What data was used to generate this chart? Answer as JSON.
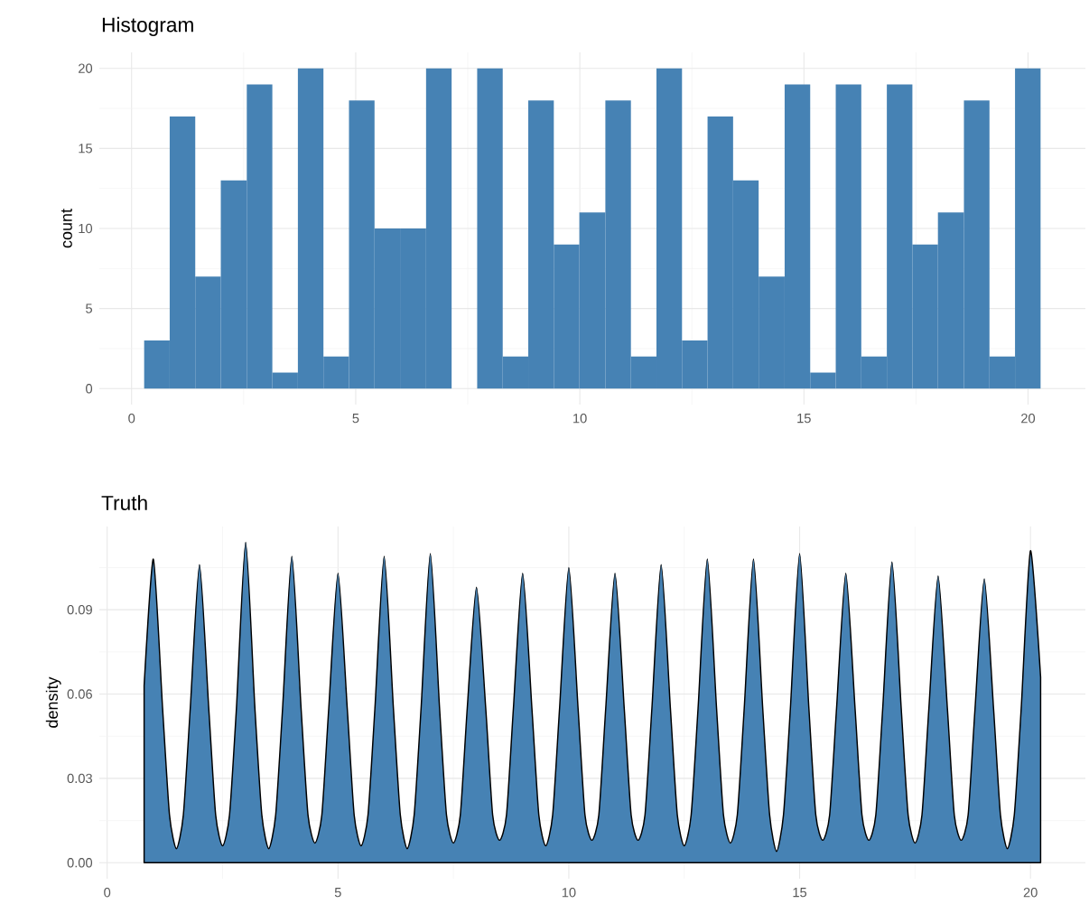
{
  "chart_data": [
    {
      "type": "histogram",
      "title": "Histogram",
      "ylabel": "count",
      "color": "#4682b4",
      "bins": [
        0.28,
        0.85,
        1.42,
        1.99,
        2.57,
        3.14,
        3.71,
        4.28,
        4.85,
        5.42,
        5.99,
        6.57,
        7.14,
        7.71,
        8.28,
        8.85,
        9.42,
        9.99,
        10.57,
        11.14,
        11.71,
        12.28,
        12.85,
        13.42,
        13.99,
        14.57,
        15.14,
        15.71,
        16.28,
        16.85,
        17.42,
        17.99,
        18.57,
        19.14,
        19.71,
        20.28
      ],
      "values": [
        3,
        17,
        7,
        13,
        19,
        1,
        20,
        2,
        18,
        10,
        10,
        20,
        0,
        20,
        2,
        18,
        9,
        11,
        18,
        2,
        20,
        3,
        17,
        13,
        7,
        19,
        1,
        19,
        2,
        19,
        9,
        11,
        18,
        2,
        20
      ],
      "xlim": [
        -0.72,
        21.28
      ],
      "ylim": [
        -1,
        21
      ],
      "xticks": [
        0,
        5,
        10,
        15,
        20
      ],
      "yticks": [
        0,
        5,
        10,
        15,
        20
      ],
      "grid": true
    },
    {
      "type": "area",
      "title": "Truth",
      "ylabel": "density",
      "color": "#4682b4",
      "x": [
        0.8,
        1,
        1.2,
        1.35,
        1.5,
        1.65,
        1.8,
        2,
        2.2,
        2.35,
        2.5,
        2.65,
        2.8,
        3,
        3.2,
        3.35,
        3.5,
        3.65,
        3.8,
        4,
        4.2,
        4.35,
        4.5,
        4.65,
        4.8,
        5,
        5.2,
        5.35,
        5.5,
        5.65,
        5.8,
        6,
        6.2,
        6.35,
        6.5,
        6.65,
        6.8,
        7,
        7.2,
        7.35,
        7.5,
        7.65,
        7.8,
        8,
        8.2,
        8.35,
        8.5,
        8.65,
        8.8,
        9,
        9.2,
        9.35,
        9.5,
        9.65,
        9.8,
        10,
        10.2,
        10.35,
        10.5,
        10.65,
        10.8,
        11,
        11.2,
        11.35,
        11.5,
        11.65,
        11.8,
        12,
        12.2,
        12.35,
        12.5,
        12.65,
        12.8,
        13,
        13.2,
        13.35,
        13.5,
        13.65,
        13.8,
        14,
        14.2,
        14.35,
        14.5,
        14.65,
        14.8,
        15,
        15.2,
        15.35,
        15.5,
        15.65,
        15.8,
        16,
        16.2,
        16.35,
        16.5,
        16.65,
        16.8,
        17,
        17.2,
        17.35,
        17.5,
        17.65,
        17.8,
        18,
        18.2,
        18.35,
        18.5,
        18.65,
        18.8,
        19,
        19.2,
        19.35,
        19.5,
        19.65,
        19.8,
        20,
        20.22
      ],
      "values": [
        0.063,
        0.108,
        0.055,
        0.017,
        0.005,
        0.017,
        0.055,
        0.106,
        0.055,
        0.017,
        0.006,
        0.017,
        0.055,
        0.114,
        0.055,
        0.017,
        0.005,
        0.017,
        0.055,
        0.109,
        0.055,
        0.017,
        0.007,
        0.017,
        0.055,
        0.103,
        0.055,
        0.017,
        0.006,
        0.017,
        0.055,
        0.109,
        0.055,
        0.017,
        0.005,
        0.017,
        0.055,
        0.11,
        0.055,
        0.017,
        0.007,
        0.017,
        0.055,
        0.098,
        0.055,
        0.017,
        0.008,
        0.017,
        0.055,
        0.103,
        0.055,
        0.017,
        0.006,
        0.017,
        0.055,
        0.105,
        0.055,
        0.017,
        0.008,
        0.017,
        0.055,
        0.103,
        0.055,
        0.017,
        0.008,
        0.017,
        0.055,
        0.106,
        0.055,
        0.017,
        0.006,
        0.017,
        0.055,
        0.108,
        0.055,
        0.017,
        0.007,
        0.017,
        0.055,
        0.108,
        0.055,
        0.017,
        0.004,
        0.017,
        0.055,
        0.11,
        0.055,
        0.017,
        0.008,
        0.017,
        0.055,
        0.103,
        0.055,
        0.017,
        0.008,
        0.017,
        0.055,
        0.107,
        0.055,
        0.017,
        0.007,
        0.017,
        0.055,
        0.102,
        0.055,
        0.017,
        0.008,
        0.017,
        0.055,
        0.101,
        0.055,
        0.017,
        0.005,
        0.017,
        0.055,
        0.111,
        0.066
      ],
      "xlim": [
        -0.17,
        21.19
      ],
      "ylim": [
        -0.0057,
        0.1196
      ],
      "xticks": [
        0,
        5,
        10,
        15,
        20
      ],
      "yticks": [
        {
          "value": 0,
          "label": "0.00"
        },
        0.03,
        0.06,
        0.09
      ],
      "grid": true
    }
  ]
}
